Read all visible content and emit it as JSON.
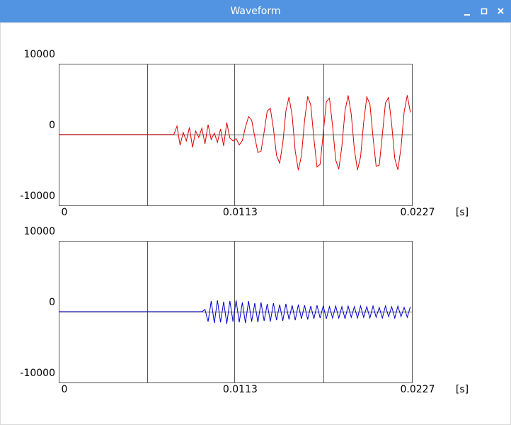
{
  "window": {
    "title": "Waveform"
  },
  "chart_data": [
    {
      "type": "line",
      "color": "#e00000",
      "xlabel": "[s]",
      "xlim": [
        0,
        0.0227
      ],
      "ylim": [
        -10000,
        10000
      ],
      "xticks": [
        0,
        {
          "value": 0.005675,
          "label": null
        },
        0.0113,
        {
          "value": 0.017025,
          "label": null
        },
        0.0227
      ],
      "yticks": [
        10000,
        0,
        -10000
      ],
      "grid": true,
      "x": [
        0,
        0.0002,
        0.0004,
        0.0006,
        0.0008,
        0.001,
        0.0012,
        0.0014,
        0.0016,
        0.0018,
        0.002,
        0.0022,
        0.0024,
        0.0026,
        0.0028,
        0.003,
        0.0032,
        0.0034,
        0.0036,
        0.0038,
        0.004,
        0.0042,
        0.0044,
        0.0046,
        0.0048,
        0.005,
        0.0052,
        0.0054,
        0.0056,
        0.0058,
        0.006,
        0.0062,
        0.0064,
        0.0066,
        0.0068,
        0.007,
        0.0072,
        0.0074,
        0.0076,
        0.0078,
        0.008,
        0.0082,
        0.0084,
        0.0086,
        0.0088,
        0.009,
        0.0092,
        0.0094,
        0.0096,
        0.0098,
        0.01,
        0.0102,
        0.0104,
        0.0106,
        0.0108,
        0.011,
        0.0112,
        0.0114,
        0.0116,
        0.0118,
        0.012,
        0.0122,
        0.0124,
        0.0126,
        0.0128,
        0.013,
        0.0132,
        0.0134,
        0.0136,
        0.0138,
        0.014,
        0.0142,
        0.0144,
        0.0146,
        0.0148,
        0.015,
        0.0152,
        0.0154,
        0.0156,
        0.0158,
        0.016,
        0.0162,
        0.0164,
        0.0166,
        0.0168,
        0.017,
        0.0172,
        0.0174,
        0.0176,
        0.0178,
        0.018,
        0.0182,
        0.0184,
        0.0186,
        0.0188,
        0.019,
        0.0192,
        0.0194,
        0.0196,
        0.0198,
        0.02,
        0.0202,
        0.0204,
        0.0206,
        0.0208,
        0.021,
        0.0212,
        0.0214,
        0.0216,
        0.0218,
        0.022,
        0.0222,
        0.0224,
        0.0226
      ],
      "values": [
        0,
        0,
        0,
        0,
        0,
        0,
        0,
        0,
        0,
        0,
        0,
        0,
        0,
        0,
        0,
        0,
        0,
        0,
        0,
        0,
        0,
        0,
        0,
        0,
        0,
        0,
        0,
        0,
        0,
        0,
        0,
        0,
        0,
        0,
        0,
        0,
        0,
        0,
        1200,
        -1500,
        300,
        -900,
        1000,
        -1800,
        500,
        -400,
        900,
        -1300,
        1400,
        -700,
        200,
        -1100,
        800,
        -1600,
        1700,
        -500,
        -900,
        -550,
        -1460,
        -853,
        1050,
        2550,
        2040,
        -330,
        -2520,
        -2360,
        350,
        3350,
        3690,
        810,
        -2940,
        -4040,
        -1200,
        3320,
        5310,
        2710,
        -2320,
        -5030,
        -2980,
        1970,
        5390,
        4160,
        -580,
        -4590,
        -4190,
        160,
        4640,
        5140,
        1220,
        -3560,
        -4910,
        -1610,
        3360,
        5540,
        2900,
        -2070,
        -5010,
        -3150,
        1750,
        5320,
        4310,
        -350,
        -4470,
        -4340,
        -30,
        4480,
        5230,
        1440,
        -3400,
        -4970,
        -1820,
        3180,
        5550,
        3140
      ]
    },
    {
      "type": "line",
      "color": "#0000c8",
      "xlabel": "[s]",
      "xlim": [
        0,
        0.0227
      ],
      "ylim": [
        -10000,
        10000
      ],
      "xticks": [
        0,
        {
          "value": 0.005675,
          "label": null
        },
        0.0113,
        {
          "value": 0.017025,
          "label": null
        },
        0.0227
      ],
      "yticks": [
        10000,
        0,
        -10000
      ],
      "grid": true,
      "x": [
        0,
        0.0002,
        0.0004,
        0.0006,
        0.0008,
        0.001,
        0.0012,
        0.0014,
        0.0016,
        0.0018,
        0.002,
        0.0022,
        0.0024,
        0.0026,
        0.0028,
        0.003,
        0.0032,
        0.0034,
        0.0036,
        0.0038,
        0.004,
        0.0042,
        0.0044,
        0.0046,
        0.0048,
        0.005,
        0.0052,
        0.0054,
        0.0056,
        0.0058,
        0.006,
        0.0062,
        0.0064,
        0.0066,
        0.0068,
        0.007,
        0.0072,
        0.0074,
        0.0076,
        0.0078,
        0.008,
        0.0082,
        0.0084,
        0.0086,
        0.0088,
        0.009,
        0.0092,
        0.0094,
        0.0096,
        0.0098,
        0.01,
        0.0102,
        0.0104,
        0.0106,
        0.0108,
        0.011,
        0.0112,
        0.0114,
        0.0116,
        0.0118,
        0.012,
        0.0122,
        0.0124,
        0.0126,
        0.0128,
        0.013,
        0.0132,
        0.0134,
        0.0136,
        0.0138,
        0.014,
        0.0142,
        0.0144,
        0.0146,
        0.0148,
        0.015,
        0.0152,
        0.0154,
        0.0156,
        0.0158,
        0.016,
        0.0162,
        0.0164,
        0.0166,
        0.0168,
        0.017,
        0.0172,
        0.0174,
        0.0176,
        0.0178,
        0.018,
        0.0182,
        0.0184,
        0.0186,
        0.0188,
        0.019,
        0.0192,
        0.0194,
        0.0196,
        0.0198,
        0.02,
        0.0202,
        0.0204,
        0.0206,
        0.0208,
        0.021,
        0.0212,
        0.0214,
        0.0216,
        0.0218,
        0.022,
        0.0222,
        0.0224,
        0.0226
      ],
      "values": [
        0,
        0,
        0,
        0,
        0,
        0,
        0,
        0,
        0,
        0,
        0,
        0,
        0,
        0,
        0,
        0,
        0,
        0,
        0,
        0,
        0,
        0,
        0,
        0,
        0,
        0,
        0,
        0,
        0,
        0,
        0,
        0,
        0,
        0,
        0,
        0,
        0,
        0,
        0,
        0,
        0,
        0,
        0,
        0,
        0,
        0,
        0,
        300,
        -1400,
        1500,
        -1600,
        1600,
        -1500,
        1400,
        -1700,
        1500,
        -1400,
        1600,
        -1500,
        1300,
        -1600,
        1500,
        -1400,
        1200,
        -1500,
        1300,
        -1300,
        1100,
        -1400,
        1200,
        -1200,
        1000,
        -1300,
        1100,
        -1100,
        900,
        -1200,
        1000,
        -1000,
        900,
        -1100,
        800,
        -1000,
        900,
        -900,
        800,
        -1000,
        700,
        -900,
        800,
        -900,
        700,
        -1000,
        800,
        -800,
        700,
        -900,
        800,
        -800,
        700,
        -900,
        800,
        -800,
        600,
        -900,
        800,
        -700,
        700,
        -900,
        800,
        -700,
        600,
        -800,
        700
      ]
    }
  ]
}
